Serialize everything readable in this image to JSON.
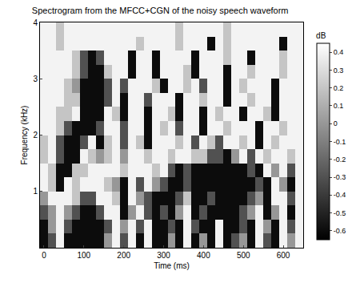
{
  "chart_data": {
    "type": "heatmap",
    "title": "Spectrogram from the MFCC+CGN of the noisy speech waveform",
    "x_label": "Time (ms)",
    "y_label": "Frequency (kHz)",
    "color": "gray",
    "x": [
      0,
      20,
      40,
      60,
      80,
      100,
      120,
      140,
      160,
      180,
      200,
      220,
      240,
      260,
      280,
      300,
      320,
      340,
      360,
      380,
      400,
      420,
      440,
      460,
      480,
      500,
      520,
      540,
      560,
      580,
      600,
      620,
      640
    ],
    "y": [
      0.125,
      0.375,
      0.625,
      0.875,
      1.125,
      1.375,
      1.625,
      1.875,
      2.125,
      2.375,
      2.625,
      2.875,
      3.125,
      3.375,
      3.625,
      3.875
    ],
    "z": [
      [
        -0.6,
        -0.3,
        0.4,
        -0.6,
        -0.6,
        -0.6,
        -0.6,
        -0.6,
        0,
        0.4,
        -0.3,
        0.4,
        -0.6,
        0.4,
        -0.6,
        -0.6,
        0,
        -0.6,
        0.4,
        -0.6,
        0,
        -0.6,
        0.4,
        -0.6,
        -0.3,
        0,
        -0.6,
        0.4,
        -0.3,
        -0.6,
        0.4,
        0,
        0.4
      ],
      [
        -0.6,
        0,
        0.4,
        -0.3,
        -0.6,
        -0.6,
        -0.6,
        -0.6,
        -0.3,
        0.4,
        0,
        0.4,
        -0.3,
        0.4,
        -0.6,
        -0.6,
        -0.3,
        -0.6,
        0.4,
        -0.3,
        -0.6,
        -0.6,
        0.4,
        -0.6,
        -0.6,
        -0.3,
        -0.6,
        0.4,
        0,
        -0.6,
        0.4,
        -0.3,
        0.4
      ],
      [
        -0.3,
        0,
        0.4,
        0,
        -0.3,
        -0.6,
        -0.6,
        -0.3,
        0.4,
        0.4,
        -0.6,
        0,
        0.4,
        -0.3,
        -0.6,
        -0.3,
        -0.6,
        0,
        0.4,
        -0.6,
        -0.3,
        -0.6,
        -0.6,
        -0.6,
        -0.6,
        -0.3,
        0,
        0.4,
        -0.6,
        0,
        0.4,
        -0.6,
        0.4
      ],
      [
        0,
        0.4,
        0.4,
        0.4,
        0.2,
        -0.3,
        -0.3,
        0.4,
        0.4,
        0.2,
        -0.6,
        0.4,
        0,
        -0.3,
        -0.6,
        -0.6,
        -0.6,
        -0.3,
        0.2,
        -0.6,
        -0.6,
        -0.3,
        -0.6,
        -0.6,
        -0.6,
        -0.6,
        -0.3,
        0,
        -0.6,
        0.4,
        0.4,
        -0.3,
        0.4
      ],
      [
        0.4,
        0.2,
        -0.6,
        0.4,
        0.2,
        0.4,
        0.4,
        0.4,
        0.2,
        0,
        -0.6,
        0.4,
        -0.3,
        0.4,
        0,
        -0.3,
        -0.6,
        -0.6,
        -0.3,
        -0.6,
        -0.6,
        -0.6,
        -0.6,
        -0.6,
        -0.6,
        -0.6,
        -0.6,
        -0.3,
        -0.6,
        0.4,
        0,
        -0.6,
        0.4
      ],
      [
        0.4,
        0.2,
        -0.6,
        -0.6,
        0.2,
        0.2,
        0.4,
        0.4,
        0.4,
        0.4,
        0.2,
        0.4,
        0.4,
        0.4,
        0.2,
        0.4,
        -0.3,
        -0.6,
        -0.3,
        -0.6,
        -0.6,
        -0.6,
        -0.6,
        -0.6,
        -0.6,
        -0.6,
        -0.3,
        -0.6,
        0.4,
        0,
        0.4,
        -0.3,
        0.4
      ],
      [
        0.2,
        0.4,
        -0.3,
        -0.6,
        -0.6,
        0.4,
        0.2,
        0,
        0.2,
        0.4,
        0,
        0.4,
        0.4,
        0.2,
        0.4,
        0.4,
        0.2,
        0.4,
        0.4,
        0.2,
        0.2,
        -0.3,
        -0.3,
        -0.6,
        0,
        0.4,
        -0.3,
        0.4,
        0.2,
        0.4,
        0.4,
        0.2,
        0.4
      ],
      [
        0.2,
        0.4,
        -0.3,
        -0.6,
        -0.6,
        -0.3,
        0.4,
        -0.6,
        0.2,
        0.4,
        -0.3,
        0.4,
        0.2,
        -0.6,
        0.4,
        0.4,
        0.4,
        0.2,
        0.4,
        -0.3,
        0.4,
        0.2,
        -0.3,
        0.4,
        0.4,
        0.2,
        0.4,
        -0.6,
        0.4,
        0.2,
        0.4,
        0.4,
        0.4
      ],
      [
        0.4,
        0.4,
        0.2,
        -0.3,
        -0.6,
        -0.6,
        -0.6,
        -0.3,
        0.4,
        0.4,
        -0.3,
        0.4,
        0.4,
        -0.6,
        0.4,
        0.2,
        0.4,
        -0.3,
        0.4,
        0.4,
        -0.6,
        0.4,
        0.4,
        0.2,
        0.4,
        0.4,
        0.4,
        -0.6,
        0.4,
        0.4,
        0.2,
        0.4,
        0.4
      ],
      [
        0.4,
        0.4,
        0.2,
        0.2,
        0.4,
        -0.6,
        -0.6,
        -0.6,
        0.4,
        0.2,
        -0.6,
        0.4,
        0.4,
        -0.6,
        0.4,
        0.4,
        0.2,
        -0.6,
        0.4,
        0.4,
        -0.6,
        0.4,
        0.2,
        0.4,
        0.4,
        -0.6,
        0.4,
        0.4,
        0.2,
        -0.6,
        0.4,
        0.4,
        0.4
      ],
      [
        0.4,
        0.4,
        0.4,
        0.2,
        0.2,
        -0.6,
        -0.6,
        -0.6,
        -0.3,
        0.4,
        -0.6,
        0.4,
        0.4,
        -0.3,
        0.4,
        0.4,
        0.4,
        -0.6,
        0.4,
        0.4,
        0.2,
        0.4,
        0.4,
        -0.6,
        0.4,
        0.4,
        0.2,
        0.4,
        0.4,
        -0.6,
        0.4,
        0.4,
        0.4
      ],
      [
        0.4,
        0.4,
        0.4,
        0.2,
        0,
        -0.6,
        -0.6,
        -0.6,
        -0.3,
        0.4,
        -0.3,
        0.4,
        0.4,
        0.4,
        0.2,
        -0.6,
        0.4,
        0.4,
        0.2,
        0.4,
        -0.3,
        0.4,
        0.4,
        -0.6,
        0.4,
        0.2,
        0.4,
        0.4,
        0.4,
        -0.6,
        0.4,
        0.4,
        0.4
      ],
      [
        0.4,
        0.4,
        0.4,
        0.4,
        0.2,
        -0.3,
        -0.6,
        -0.6,
        0.2,
        0.4,
        0.4,
        -0.6,
        0.4,
        0.4,
        -0.6,
        0.4,
        0.4,
        0.4,
        0.2,
        -0.6,
        0.4,
        0.4,
        0.4,
        -0.6,
        0.4,
        0.4,
        0.2,
        0.4,
        0.4,
        0.4,
        0.2,
        0.4,
        0.4
      ],
      [
        0.4,
        0.4,
        0.4,
        0.4,
        0.2,
        -0.3,
        -0.6,
        -0.3,
        0.4,
        0.4,
        0.4,
        -0.6,
        0.4,
        0.4,
        -0.6,
        0.4,
        0.4,
        0.4,
        0.4,
        -0.6,
        0.4,
        0.4,
        0.4,
        0.2,
        0.4,
        0.4,
        -0.6,
        0.4,
        0.4,
        0.4,
        0.2,
        0.4,
        0.4
      ],
      [
        0.4,
        0.4,
        0.2,
        0.4,
        0.4,
        0.4,
        0.4,
        0.4,
        0.4,
        0.4,
        0.4,
        0.4,
        0.2,
        0.4,
        0.4,
        0.4,
        0.4,
        0.2,
        0.4,
        0.4,
        0.4,
        -0.6,
        0.4,
        0.2,
        0.4,
        0.4,
        0.4,
        0.4,
        0.4,
        0.4,
        -0.6,
        0.4,
        0.4
      ],
      [
        0.4,
        0.4,
        0.2,
        0.4,
        0.4,
        0.4,
        0.4,
        0.4,
        0.4,
        0.4,
        0.4,
        0.4,
        0.4,
        0.4,
        0.4,
        0.4,
        0.4,
        0.2,
        0.4,
        0.4,
        0.4,
        0.4,
        0.4,
        0.2,
        0.4,
        0.4,
        0.4,
        0.4,
        0.4,
        0.4,
        0.4,
        0.4,
        0.4
      ]
    ],
    "xlim": [
      -10,
      650
    ],
    "xticks": [
      0,
      100,
      200,
      300,
      400,
      500,
      600
    ],
    "ylim": [
      0,
      4
    ],
    "yticks": [
      1,
      2,
      3,
      4
    ],
    "colorbar": {
      "title": "dB",
      "range": [
        -0.65,
        0.45
      ],
      "ticks": [
        0.4,
        0.3,
        0.2,
        0.1,
        0,
        -0.1,
        -0.2,
        -0.3,
        -0.4,
        -0.5,
        -0.6
      ]
    }
  }
}
